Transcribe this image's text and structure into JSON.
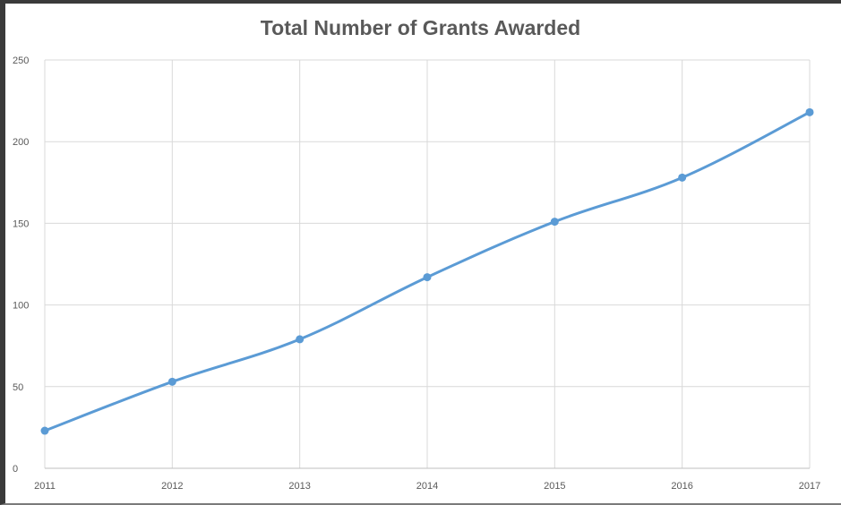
{
  "chart_data": {
    "type": "line",
    "title": "Total Number of Grants Awarded",
    "xlabel": "",
    "ylabel": "",
    "categories": [
      "2011",
      "2012",
      "2013",
      "2014",
      "2015",
      "2016",
      "2017"
    ],
    "series": [
      {
        "values": [
          23,
          53,
          79,
          117,
          151,
          178,
          218
        ]
      }
    ],
    "ylim": [
      0,
      250
    ],
    "yticks": [
      "0",
      "50",
      "100",
      "150",
      "200",
      "250"
    ],
    "grid": true,
    "legend": "none",
    "markers": true,
    "line_color": "#5B9BD5",
    "grid_color": "#D9D9D9",
    "text_color": "#595959"
  }
}
